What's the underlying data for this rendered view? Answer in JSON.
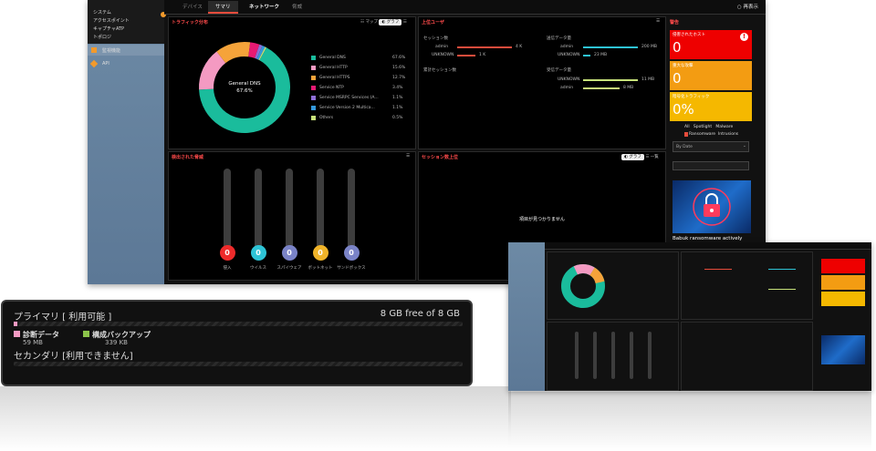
{
  "tabs": [
    "デバイス",
    "サマリ",
    "ネットワーク",
    "脅威"
  ],
  "help_label": "再表示",
  "sidebar_items": [
    "システム",
    "アクセスポイント",
    "キャプチャATP",
    "トポロジ",
    "監視機能",
    "API"
  ],
  "traffic": {
    "title": "トラフィック分布",
    "toggle": [
      "マップ",
      "グラフ"
    ],
    "center_title": "General DNS",
    "center_value": "67.6%",
    "chart_data": {
      "type": "pie",
      "categories": [
        "General DNS",
        "General HTTP",
        "General HTTPS",
        "Service NTP",
        "Service MSRPC Services (A...",
        "Service Version 2 Multica...",
        "Others"
      ],
      "values": [
        67.6,
        15.6,
        12.7,
        3.4,
        1.1,
        1.1,
        0.5
      ],
      "labels": [
        "67.6%",
        "15.6%",
        "12.7%",
        "3.4%",
        "1.1%",
        "1.1%",
        "0.5%"
      ],
      "colors": [
        "#1abc9c",
        "#f49ac2",
        "#f5a33a",
        "#e81a73",
        "#8e6fd6",
        "#3498db",
        "#c7e27a"
      ]
    }
  },
  "top_users": {
    "title": "上位ユーザ",
    "sessions_label": "セッション数",
    "sent_label": "送信データ量",
    "total_sessions_label": "累計セッション数",
    "recv_label": "受信データ量",
    "sessions": [
      {
        "name": "admin",
        "val": "4 K"
      },
      {
        "name": "UNKNOWN",
        "val": "1 K"
      }
    ],
    "sent": [
      {
        "name": "admin",
        "val": "200 MB"
      },
      {
        "name": "UNKNOWN",
        "val": "23 MB"
      }
    ],
    "recv": [
      {
        "name": "UNKNOWN",
        "val": "11 MB"
      },
      {
        "name": "admin",
        "val": "8 MB"
      }
    ]
  },
  "blocked": {
    "title": "検出された脅威",
    "items": [
      {
        "label": "侵入",
        "value": "0",
        "color": "#ee2b2b"
      },
      {
        "label": "ウイルス",
        "value": "0",
        "color": "#2ec4d6"
      },
      {
        "label": "スパイウェア",
        "value": "0",
        "color": "#7a83c7"
      },
      {
        "label": "ボットネット",
        "value": "0",
        "color": "#f0b429"
      },
      {
        "label": "サンドボックス",
        "value": "0",
        "color": "#7a83c7"
      }
    ]
  },
  "session_top": {
    "title": "セッション数上位",
    "toggle": [
      "グラフ",
      "一覧"
    ],
    "empty": "項目が見つかりません"
  },
  "alerts": {
    "title": "警告",
    "items": [
      {
        "label": "侵害されたホスト",
        "value": "0",
        "color": "#ee0000"
      },
      {
        "label": "重大な攻撃",
        "value": "0",
        "color": "#f39c12"
      },
      {
        "label": "暗号化トラフィック",
        "value": "0%",
        "color": "#f5b800"
      }
    ],
    "news_tabs": [
      "All",
      "Spotlight",
      "Malware"
    ],
    "news_tabs2": [
      "Ransomware",
      "Intrusions"
    ],
    "select_label": "By Date",
    "news_caption": "Babuk ransomware actively"
  },
  "storage": {
    "primary": "プライマリ [ 利用可能 ]",
    "free": "8 GB free of 8 GB",
    "item1": "診断データ",
    "item1_size": "59 MB",
    "item2": "構成バックアップ",
    "item2_size": "339 KB",
    "secondary": "セカンダリ [利用できません]"
  }
}
